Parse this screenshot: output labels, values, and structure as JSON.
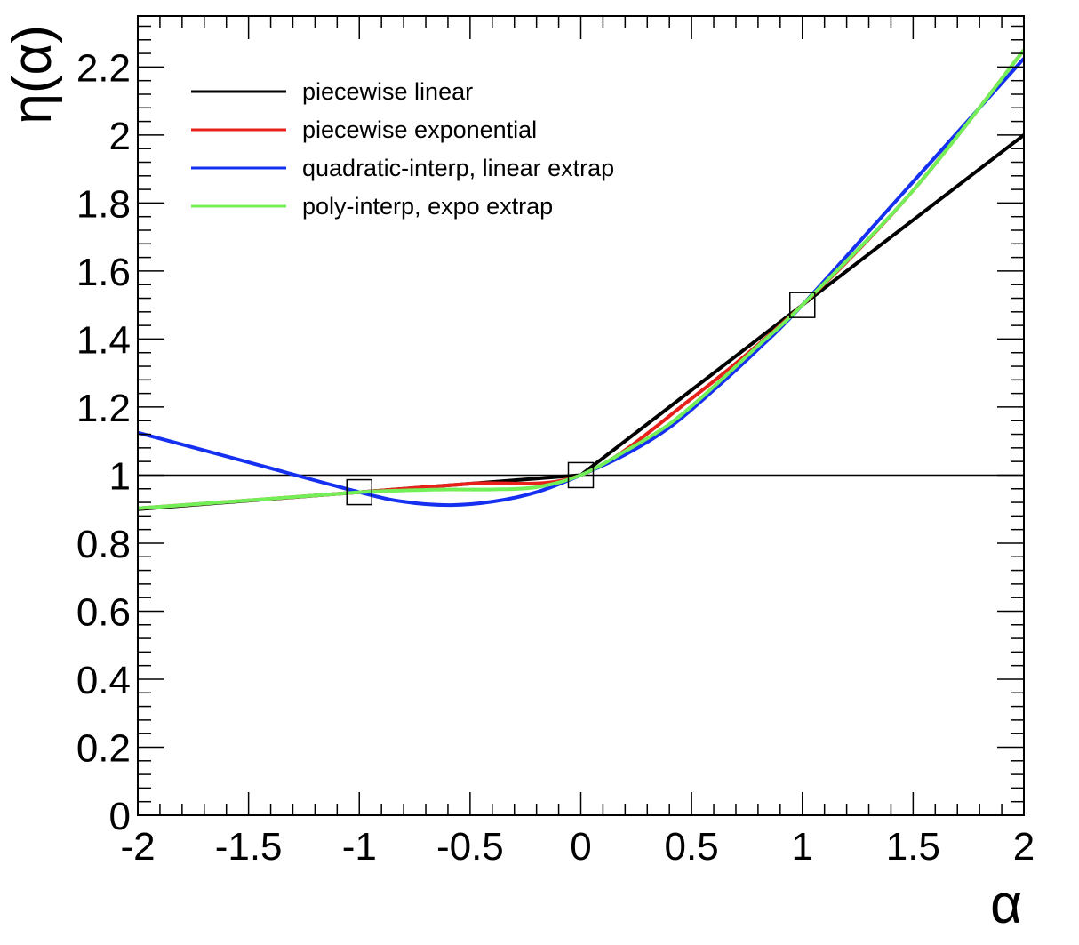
{
  "chart_data": {
    "type": "line",
    "title": "",
    "xlabel": "α",
    "ylabel": "η(α)",
    "xlim": [
      -2,
      2
    ],
    "ylim": [
      0,
      2.35
    ],
    "xticks": [
      "-2",
      "-1.5",
      "-1",
      "-0.5",
      "0",
      "0.5",
      "1",
      "1.5",
      "2"
    ],
    "yticks": [
      "0",
      "0.2",
      "0.4",
      "0.6",
      "0.8",
      "1",
      "1.2",
      "1.4",
      "1.6",
      "1.8",
      "2",
      "2.2"
    ],
    "grid": false,
    "legend_position": "top-left",
    "reference_line": {
      "y": 1,
      "color": "#000000"
    },
    "series": [
      {
        "name": "piecewise linear",
        "color": "#000000",
        "x": [
          -2,
          -1,
          0,
          1,
          2
        ],
        "y": [
          0.9,
          0.95,
          1.0,
          1.5,
          2.0
        ]
      },
      {
        "name": "piecewise exponential",
        "color": "#e8211b",
        "x": [
          -2,
          -1.5,
          -1,
          -0.5,
          0,
          0.5,
          1,
          1.5,
          2
        ],
        "y": [
          0.9025,
          0.926,
          0.95,
          0.975,
          1.0,
          1.225,
          1.5,
          1.837,
          2.25
        ]
      },
      {
        "name": "quadratic-interp, linear extrap",
        "color": "#1530f0",
        "x": [
          -2,
          -1.5,
          -1,
          -0.8,
          -0.6,
          -0.4,
          -0.2,
          0,
          0.2,
          0.4,
          0.6,
          0.8,
          1,
          1.5,
          2
        ],
        "y": [
          1.125,
          1.0375,
          0.95,
          0.922,
          0.912,
          0.922,
          0.95,
          1.0,
          1.06,
          1.14,
          1.25,
          1.37,
          1.5,
          1.8625,
          2.225
        ]
      },
      {
        "name": "poly-interp, expo extrap",
        "color": "#73ef58",
        "x": [
          -2,
          -1.5,
          -1,
          -0.8,
          -0.6,
          -0.4,
          -0.2,
          0,
          0.2,
          0.4,
          0.6,
          0.8,
          1,
          1.5,
          2
        ],
        "y": [
          0.9025,
          0.926,
          0.95,
          0.955,
          0.958,
          0.958,
          0.965,
          1.0,
          1.07,
          1.15,
          1.26,
          1.38,
          1.5,
          1.837,
          2.25
        ]
      }
    ],
    "markers": {
      "style": "open-square",
      "color": "#000000",
      "x": [
        -1,
        0,
        1
      ],
      "y": [
        0.95,
        1.0,
        1.5
      ]
    }
  }
}
